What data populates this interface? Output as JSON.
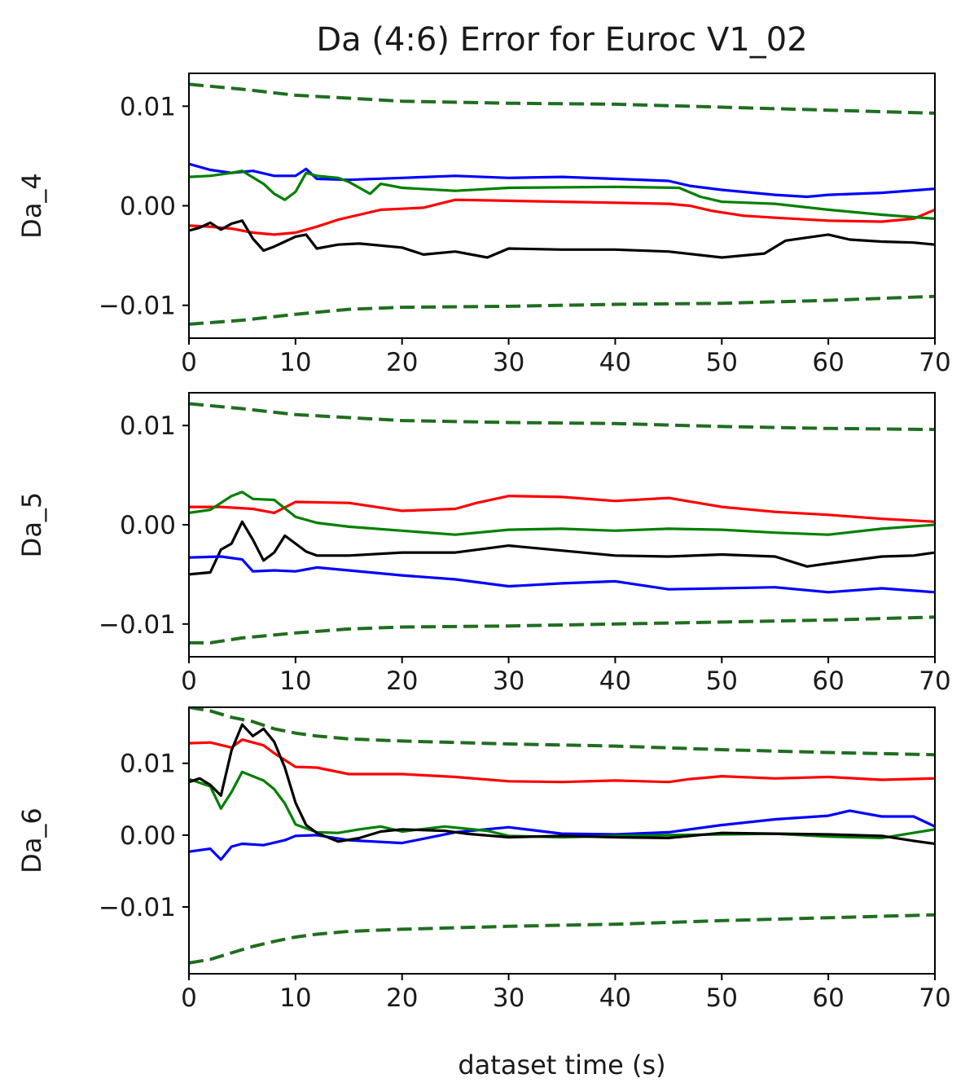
{
  "chart_data": {
    "type": "line",
    "title": "Da (4:6) Error for Euroc V1_02",
    "xlabel": "dataset time (s)",
    "xlim": [
      0,
      70
    ],
    "x_ticks": [
      0,
      10,
      20,
      30,
      40,
      50,
      60,
      70
    ],
    "x_tick_labels": [
      "0",
      "10",
      "20",
      "30",
      "40",
      "50",
      "60",
      "70"
    ],
    "grid": false,
    "legend": "none",
    "colors": {
      "red": "#ff0000",
      "blue": "#0000ff",
      "green": "#008000",
      "black": "#000000",
      "bound": "#1f6e1f"
    },
    "panels": [
      {
        "ylabel": "Da_4",
        "ylim": [
          -0.0133,
          0.0133
        ],
        "y_ticks": [
          -0.01,
          0.0,
          0.01
        ],
        "y_tick_labels": [
          "−0.01",
          "0.00",
          "0.01"
        ],
        "series": [
          {
            "color": "red",
            "style": "solid",
            "x": [
              0,
              2,
              4,
              6,
              8,
              10,
              12,
              14,
              16,
              18,
              20,
              22,
              25,
              30,
              35,
              40,
              45,
              47,
              49,
              52,
              55,
              60,
              65,
              68,
              70
            ],
            "y": [
              -0.002,
              -0.0021,
              -0.0023,
              -0.0027,
              -0.0029,
              -0.0027,
              -0.0021,
              -0.0014,
              -0.0009,
              -0.0004,
              -0.0003,
              -0.0002,
              0.0006,
              0.0005,
              0.0004,
              0.0003,
              0.0002,
              0.0,
              -0.0005,
              -0.001,
              -0.0012,
              -0.0015,
              -0.0016,
              -0.0013,
              -0.0004
            ]
          },
          {
            "color": "blue",
            "style": "solid",
            "x": [
              0,
              2,
              4,
              6,
              8,
              10,
              11,
              12,
              15,
              20,
              25,
              30,
              35,
              40,
              45,
              47,
              50,
              55,
              58,
              60,
              65,
              70
            ],
            "y": [
              0.0042,
              0.0036,
              0.0033,
              0.0035,
              0.003,
              0.003,
              0.0037,
              0.0027,
              0.0026,
              0.0028,
              0.003,
              0.0028,
              0.0029,
              0.0027,
              0.0025,
              0.002,
              0.0016,
              0.0011,
              0.0009,
              0.0011,
              0.0013,
              0.0017
            ]
          },
          {
            "color": "green",
            "style": "solid",
            "x": [
              0,
              2,
              4,
              5,
              7,
              8,
              9,
              10,
              11,
              12,
              14,
              15,
              17,
              18,
              20,
              25,
              30,
              40,
              46,
              48,
              50,
              55,
              60,
              65,
              70
            ],
            "y": [
              0.0029,
              0.003,
              0.0033,
              0.0035,
              0.0022,
              0.0012,
              0.0006,
              0.0014,
              0.0033,
              0.003,
              0.0028,
              0.0024,
              0.0012,
              0.0022,
              0.0018,
              0.0015,
              0.0018,
              0.0019,
              0.0018,
              0.0009,
              0.0004,
              0.0002,
              -0.0004,
              -0.0009,
              -0.0013
            ]
          },
          {
            "color": "black",
            "style": "solid",
            "x": [
              0,
              1,
              2,
              3,
              4,
              5,
              6,
              7,
              8,
              9,
              10,
              11,
              12,
              14,
              16,
              20,
              22,
              25,
              28,
              30,
              35,
              40,
              45,
              50,
              54,
              56,
              58,
              60,
              62,
              65,
              68,
              70
            ],
            "y": [
              -0.0025,
              -0.0022,
              -0.0017,
              -0.0024,
              -0.0018,
              -0.0015,
              -0.0033,
              -0.0045,
              -0.0041,
              -0.0036,
              -0.0031,
              -0.0029,
              -0.0043,
              -0.0039,
              -0.0038,
              -0.0042,
              -0.0049,
              -0.0046,
              -0.0052,
              -0.0043,
              -0.0044,
              -0.0044,
              -0.0046,
              -0.0052,
              -0.0048,
              -0.0035,
              -0.0032,
              -0.0029,
              -0.0034,
              -0.0036,
              -0.0037,
              -0.0039
            ]
          },
          {
            "color": "bound",
            "style": "dashed",
            "x": [
              0,
              5,
              10,
              15,
              20,
              30,
              40,
              50,
              60,
              70
            ],
            "y": [
              0.0122,
              0.0117,
              0.0111,
              0.0108,
              0.0105,
              0.0103,
              0.0102,
              0.0099,
              0.0096,
              0.0093
            ]
          },
          {
            "color": "bound",
            "style": "dashed",
            "x": [
              0,
              5,
              10,
              15,
              20,
              30,
              40,
              50,
              60,
              70
            ],
            "y": [
              -0.0119,
              -0.0115,
              -0.0109,
              -0.0104,
              -0.0102,
              -0.0101,
              -0.0099,
              -0.0098,
              -0.0095,
              -0.0091
            ]
          }
        ]
      },
      {
        "ylabel": "Da_5",
        "ylim": [
          -0.0133,
          0.0133
        ],
        "y_ticks": [
          -0.01,
          0.0,
          0.01
        ],
        "y_tick_labels": [
          "−0.01",
          "0.00",
          "0.01"
        ],
        "series": [
          {
            "color": "red",
            "style": "solid",
            "x": [
              0,
              3,
              6,
              8,
              10,
              15,
              20,
              25,
              27,
              30,
              35,
              40,
              45,
              50,
              55,
              60,
              65,
              70
            ],
            "y": [
              0.0018,
              0.0018,
              0.0016,
              0.0012,
              0.0023,
              0.0022,
              0.0014,
              0.0016,
              0.0022,
              0.0029,
              0.0028,
              0.0024,
              0.0027,
              0.0018,
              0.0013,
              0.001,
              0.0006,
              0.0003
            ]
          },
          {
            "color": "green",
            "style": "solid",
            "x": [
              0,
              2,
              4,
              5,
              6,
              8,
              10,
              12,
              15,
              20,
              25,
              30,
              35,
              40,
              45,
              50,
              55,
              60,
              65,
              70
            ],
            "y": [
              0.0012,
              0.0015,
              0.0029,
              0.0033,
              0.0026,
              0.0025,
              0.0008,
              0.0002,
              -0.0002,
              -0.0006,
              -0.001,
              -0.0005,
              -0.0004,
              -0.0006,
              -0.0004,
              -0.0005,
              -0.0008,
              -0.001,
              -0.0004,
              0.0
            ]
          },
          {
            "color": "black",
            "style": "solid",
            "x": [
              0,
              2,
              3,
              4,
              5,
              6,
              7,
              8,
              9,
              10,
              11,
              12,
              15,
              20,
              25,
              30,
              35,
              40,
              45,
              50,
              55,
              58,
              60,
              65,
              68,
              70
            ],
            "y": [
              -0.005,
              -0.0048,
              -0.0025,
              -0.0019,
              0.0003,
              -0.0015,
              -0.0036,
              -0.0028,
              -0.0011,
              -0.0019,
              -0.0027,
              -0.0031,
              -0.0031,
              -0.0028,
              -0.0028,
              -0.0021,
              -0.0026,
              -0.0031,
              -0.0032,
              -0.003,
              -0.0032,
              -0.0042,
              -0.0039,
              -0.0032,
              -0.0031,
              -0.0028
            ]
          },
          {
            "color": "blue",
            "style": "solid",
            "x": [
              0,
              3,
              5,
              6,
              8,
              10,
              12,
              15,
              20,
              25,
              30,
              35,
              40,
              45,
              50,
              55,
              60,
              65,
              70
            ],
            "y": [
              -0.0033,
              -0.0032,
              -0.0035,
              -0.0047,
              -0.0046,
              -0.0047,
              -0.0043,
              -0.0046,
              -0.0051,
              -0.0055,
              -0.0062,
              -0.0059,
              -0.0057,
              -0.0065,
              -0.0064,
              -0.0063,
              -0.0068,
              -0.0064,
              -0.0068
            ]
          },
          {
            "color": "bound",
            "style": "dashed",
            "x": [
              0,
              5,
              10,
              15,
              20,
              30,
              40,
              50,
              60,
              70
            ],
            "y": [
              0.0122,
              0.0117,
              0.0111,
              0.0108,
              0.0105,
              0.0103,
              0.0102,
              0.0099,
              0.0097,
              0.0096
            ]
          },
          {
            "color": "bound",
            "style": "dashed",
            "x": [
              0,
              2,
              5,
              10,
              15,
              20,
              30,
              40,
              50,
              60,
              70
            ],
            "y": [
              -0.0119,
              -0.0119,
              -0.0114,
              -0.0109,
              -0.0105,
              -0.0103,
              -0.0102,
              -0.01,
              -0.0098,
              -0.0096,
              -0.0093
            ]
          }
        ]
      },
      {
        "ylabel": "Da_6",
        "ylim": [
          -0.0193,
          0.0178
        ],
        "y_ticks": [
          -0.01,
          0.0,
          0.01
        ],
        "y_tick_labels": [
          "−0.01",
          "0.00",
          "0.01"
        ],
        "series": [
          {
            "color": "red",
            "style": "solid",
            "x": [
              0,
              2,
              4,
              5,
              6,
              7,
              8,
              10,
              12,
              15,
              20,
              25,
              30,
              35,
              40,
              45,
              47,
              50,
              55,
              60,
              65,
              70
            ],
            "y": [
              0.0128,
              0.0129,
              0.0122,
              0.0133,
              0.0129,
              0.0125,
              0.0114,
              0.0095,
              0.0094,
              0.0085,
              0.0085,
              0.0081,
              0.0075,
              0.0074,
              0.0076,
              0.0074,
              0.0078,
              0.0082,
              0.0079,
              0.0081,
              0.0077,
              0.0079
            ]
          },
          {
            "color": "blue",
            "style": "solid",
            "x": [
              0,
              2,
              3,
              4,
              5,
              7,
              9,
              10,
              12,
              15,
              20,
              25,
              30,
              35,
              40,
              45,
              50,
              55,
              60,
              62,
              65,
              68,
              70
            ],
            "y": [
              -0.0023,
              -0.0019,
              -0.0034,
              -0.0016,
              -0.0012,
              -0.0014,
              -0.0007,
              -0.0001,
              0.0,
              -0.0007,
              -0.0011,
              0.0004,
              0.0011,
              0.0002,
              0.0001,
              0.0004,
              0.0014,
              0.0022,
              0.0027,
              0.0034,
              0.0026,
              0.0026,
              0.0012
            ]
          },
          {
            "color": "green",
            "style": "solid",
            "x": [
              0,
              2,
              3,
              4,
              5,
              6,
              7,
              8,
              9,
              10,
              12,
              14,
              16,
              18,
              20,
              24,
              28,
              30,
              35,
              40,
              45,
              50,
              55,
              60,
              65,
              70
            ],
            "y": [
              0.0078,
              0.0068,
              0.0037,
              0.006,
              0.0088,
              0.0082,
              0.0076,
              0.0064,
              0.0044,
              0.0015,
              0.0004,
              0.0003,
              0.0008,
              0.0012,
              0.0005,
              0.0012,
              0.0006,
              -0.0001,
              -0.0003,
              -0.0001,
              0.0,
              0.0001,
              0.0002,
              -0.0002,
              -0.0004,
              0.0008
            ]
          },
          {
            "color": "black",
            "style": "solid",
            "x": [
              0,
              1,
              2,
              3,
              4,
              5,
              6,
              7,
              8,
              9,
              10,
              11,
              12,
              14,
              16,
              18,
              20,
              24,
              26,
              30,
              35,
              40,
              45,
              50,
              55,
              60,
              65,
              68,
              70
            ],
            "y": [
              0.0074,
              0.0079,
              0.007,
              0.0055,
              0.0118,
              0.0154,
              0.0138,
              0.0148,
              0.013,
              0.0094,
              0.0045,
              0.0014,
              0.0003,
              -0.0009,
              -0.0004,
              0.0005,
              0.0008,
              0.0006,
              0.0002,
              -0.0003,
              -0.0001,
              -0.0003,
              -0.0004,
              0.0003,
              0.0002,
              0.0001,
              -0.0001,
              -0.0008,
              -0.0012
            ]
          },
          {
            "color": "bound",
            "style": "dashed",
            "x": [
              0,
              2,
              4,
              6,
              8,
              10,
              12,
              15,
              20,
              30,
              40,
              50,
              60,
              70
            ],
            "y": [
              0.0178,
              0.0173,
              0.0164,
              0.0158,
              0.0148,
              0.0142,
              0.0138,
              0.0134,
              0.0131,
              0.0127,
              0.0124,
              0.0119,
              0.0115,
              0.0112
            ]
          },
          {
            "color": "bound",
            "style": "dashed",
            "x": [
              0,
              2,
              4,
              6,
              8,
              10,
              12,
              15,
              20,
              30,
              40,
              50,
              60,
              70
            ],
            "y": [
              -0.0178,
              -0.0173,
              -0.0164,
              -0.0155,
              -0.0148,
              -0.0142,
              -0.0138,
              -0.0134,
              -0.0131,
              -0.0127,
              -0.0124,
              -0.0119,
              -0.0115,
              -0.0111
            ]
          }
        ]
      }
    ]
  }
}
